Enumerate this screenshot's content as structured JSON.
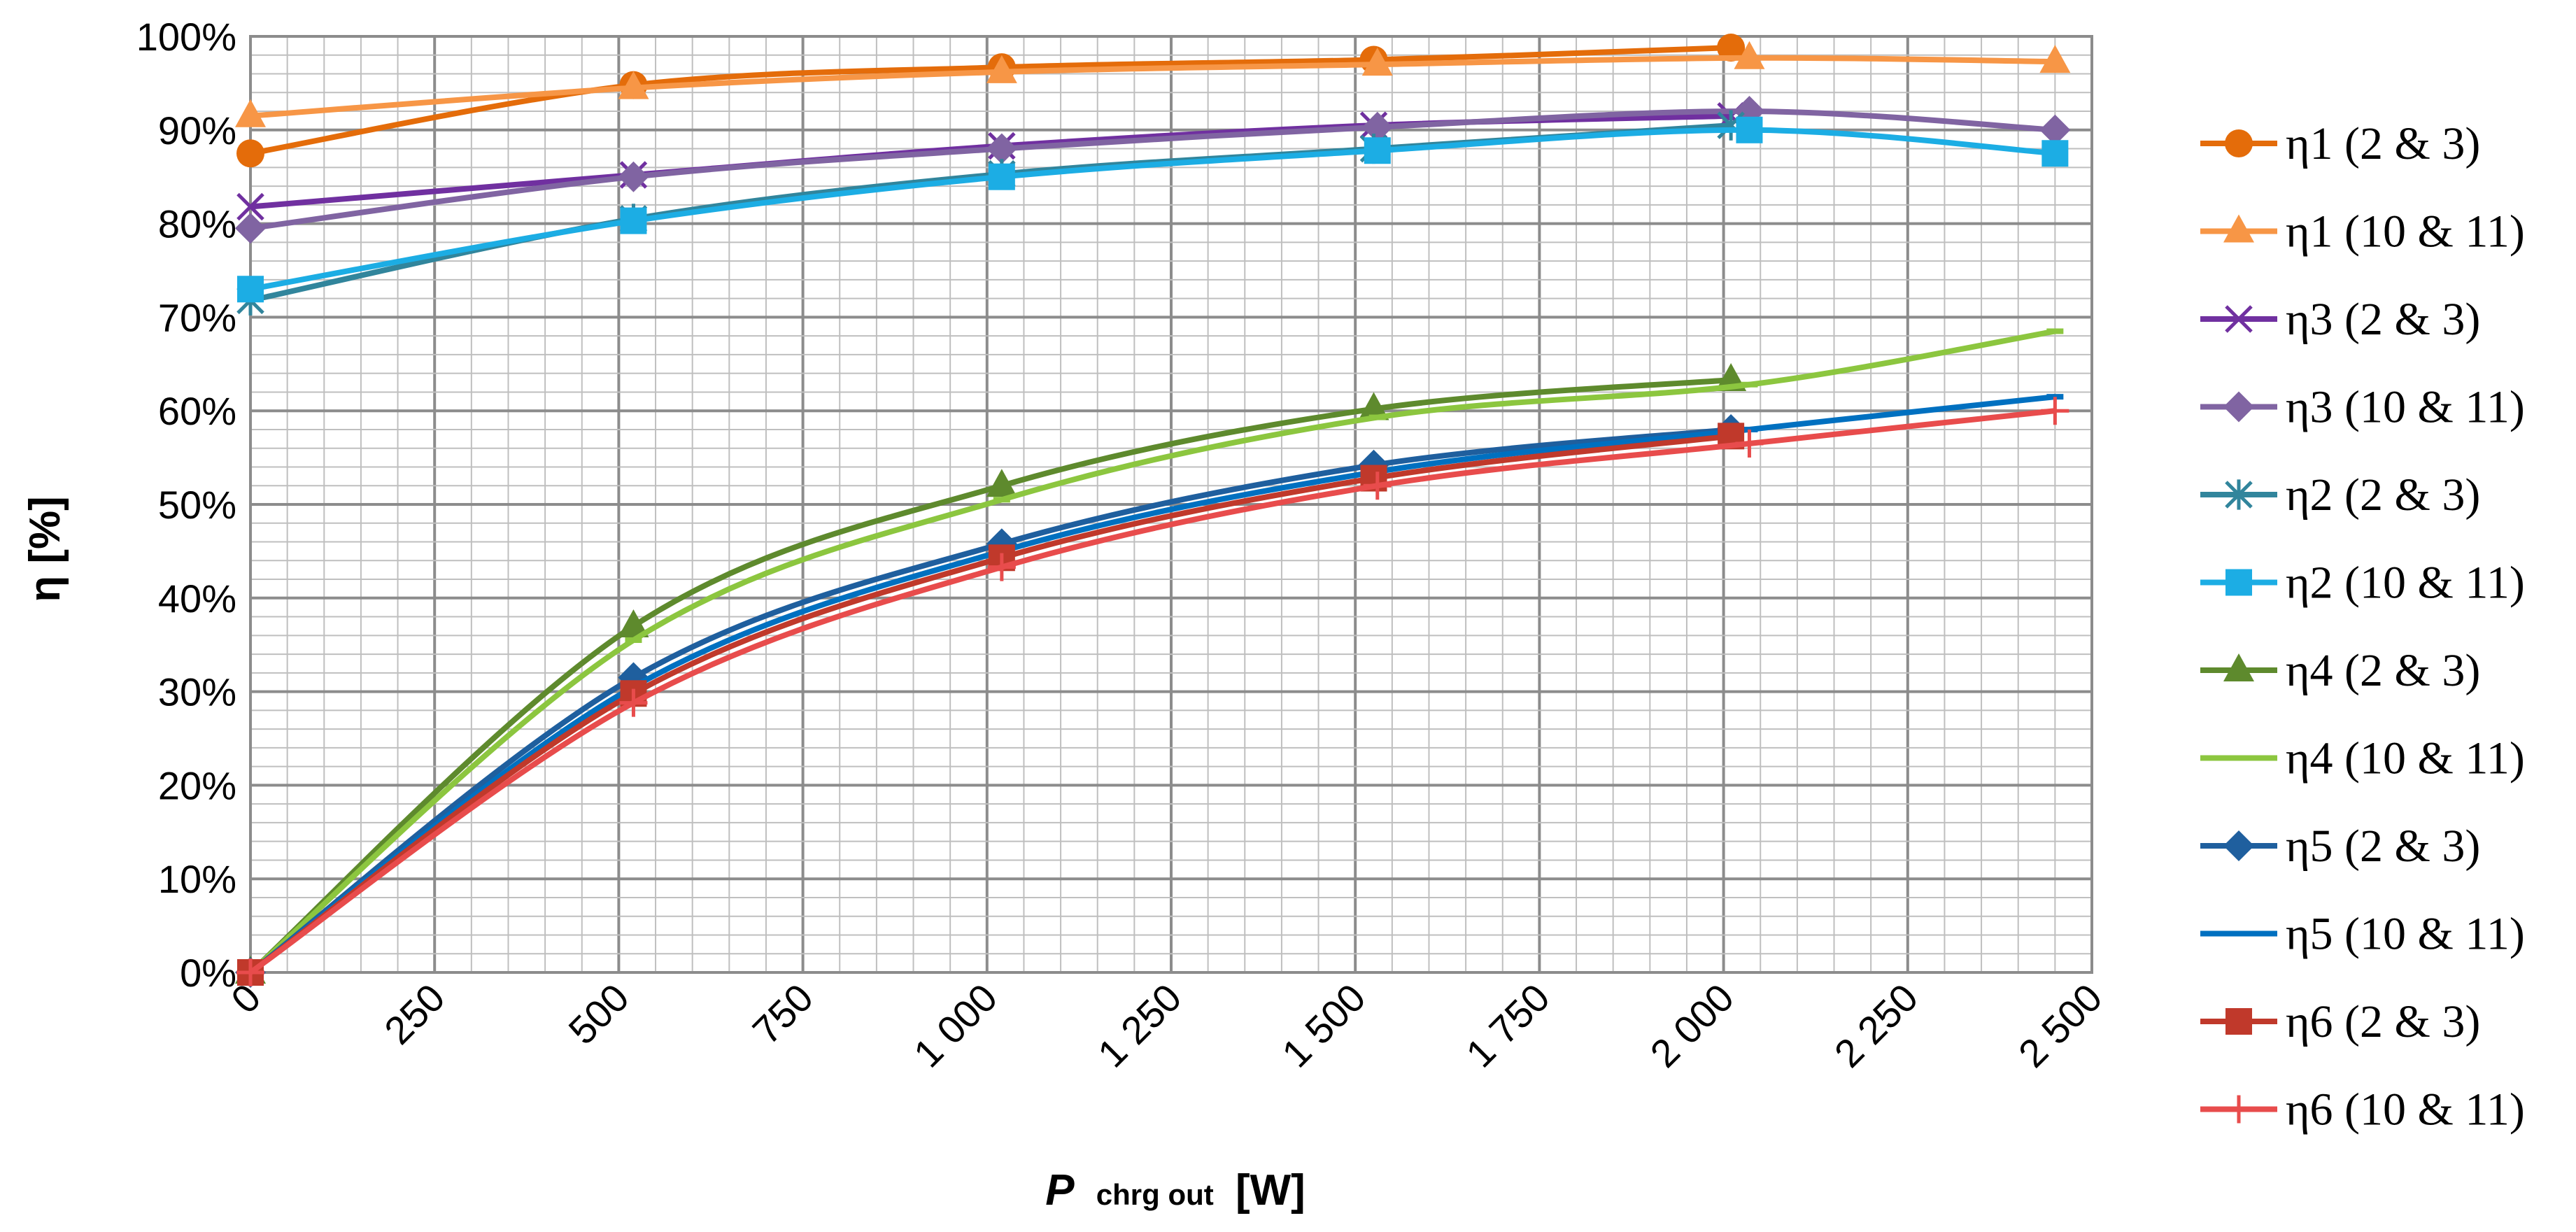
{
  "chart_data": {
    "type": "line",
    "title": "",
    "xlabel_main": "P",
    "xlabel_sub": "chrg out",
    "xlabel_unit": "[W]",
    "ylabel": "η [%]",
    "xlim": [
      0,
      2500
    ],
    "ylim": [
      0,
      100
    ],
    "x_ticks": [
      0,
      250,
      500,
      750,
      1000,
      1250,
      1500,
      1750,
      2000,
      2250,
      2500
    ],
    "x_tick_labels": [
      "0",
      "250",
      "500",
      "750",
      "1 000",
      "1 250",
      "1 500",
      "1 750",
      "2 000",
      "2 250",
      "2 500"
    ],
    "y_ticks": [
      0,
      10,
      20,
      30,
      40,
      50,
      60,
      70,
      80,
      90,
      100
    ],
    "y_tick_labels": [
      "0%",
      "10%",
      "20%",
      "30%",
      "40%",
      "50%",
      "60%",
      "70%",
      "80%",
      "90%",
      "100%"
    ],
    "grid": true,
    "legend_position": "right",
    "series": [
      {
        "name": "η1 (2 & 3)",
        "color": "#E46C0A",
        "marker": "circle",
        "x": [
          0,
          520,
          1020,
          1525,
          2010
        ],
        "y": [
          87.5,
          94.8,
          96.7,
          97.5,
          98.8
        ]
      },
      {
        "name": "η1 (10 & 11)",
        "color": "#F79646",
        "marker": "triangle",
        "x": [
          0,
          520,
          1020,
          1530,
          2035,
          2450
        ],
        "y": [
          91.5,
          94.5,
          96.2,
          97.0,
          97.7,
          97.3
        ]
      },
      {
        "name": "η3 (2 & 3)",
        "color": "#7030A0",
        "marker": "x",
        "x": [
          0,
          520,
          1020,
          1525,
          2010
        ],
        "y": [
          81.8,
          85.2,
          88.3,
          90.5,
          91.5
        ]
      },
      {
        "name": "η3 (10 & 11)",
        "color": "#8064A2",
        "marker": "diamond",
        "x": [
          0,
          520,
          1020,
          1530,
          2035,
          2450
        ],
        "y": [
          79.5,
          85.0,
          88.0,
          90.3,
          92.0,
          90.0
        ]
      },
      {
        "name": "η2 (2 & 3)",
        "color": "#31859C",
        "marker": "asterisk",
        "x": [
          0,
          520,
          1020,
          1525,
          2010
        ],
        "y": [
          71.8,
          80.5,
          85.3,
          88.0,
          90.5
        ]
      },
      {
        "name": "η2 (10 & 11)",
        "color": "#1CADE4",
        "marker": "square",
        "x": [
          0,
          520,
          1020,
          1530,
          2035,
          2450
        ],
        "y": [
          73.0,
          80.3,
          85.0,
          87.8,
          90.0,
          87.5
        ]
      },
      {
        "name": "η4 (2 & 3)",
        "color": "#5E8A2D",
        "marker": "triangle",
        "x": [
          0,
          520,
          1020,
          1525,
          2010
        ],
        "y": [
          0,
          37.0,
          52.0,
          60.2,
          63.3
        ]
      },
      {
        "name": "η4 (10 & 11)",
        "color": "#8CC63F",
        "marker": "dash",
        "x": [
          0,
          520,
          1020,
          1530,
          2035,
          2450
        ],
        "y": [
          0,
          35.5,
          50.5,
          59.3,
          62.8,
          68.5
        ]
      },
      {
        "name": "η5 (2 & 3)",
        "color": "#1F5F9E",
        "marker": "diamond",
        "x": [
          0,
          520,
          1020,
          1525,
          2010
        ],
        "y": [
          0,
          31.5,
          45.8,
          54.2,
          58.0
        ]
      },
      {
        "name": "η5 (10 & 11)",
        "color": "#0070C0",
        "marker": "dash",
        "x": [
          0,
          520,
          1020,
          1530,
          2035,
          2450
        ],
        "y": [
          0,
          30.5,
          45.0,
          53.5,
          58.0,
          61.5
        ]
      },
      {
        "name": "η6 (2 & 3)",
        "color": "#C0392B",
        "marker": "square",
        "x": [
          0,
          520,
          1020,
          1525,
          2010
        ],
        "y": [
          0,
          29.8,
          44.3,
          52.8,
          57.3
        ]
      },
      {
        "name": "η6 (10 & 11)",
        "color": "#E84C4C",
        "marker": "plus",
        "x": [
          0,
          520,
          1020,
          1530,
          2035,
          2450
        ],
        "y": [
          0,
          28.8,
          43.3,
          52.0,
          56.5,
          60.0
        ]
      }
    ]
  }
}
